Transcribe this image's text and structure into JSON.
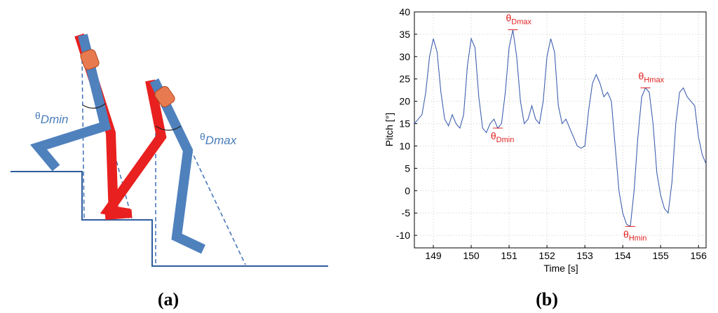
{
  "diagram": {
    "labels": [
      {
        "symbol": "θ",
        "sub": "Dmin"
      },
      {
        "symbol": "θ",
        "sub": "Dmax"
      }
    ],
    "caption": "(a)"
  },
  "chart_data": {
    "type": "line",
    "caption": "(b)",
    "x_label": "Time [s]",
    "y_label": "Pitch [°]",
    "color": "#4060b0",
    "grid": true,
    "xlim": [
      148.5,
      156.2
    ],
    "xticks": [
      149,
      150,
      151,
      152,
      153,
      154,
      155,
      156
    ],
    "ylim": [
      -12.8,
      40
    ],
    "yticks": [
      -10,
      -5,
      0,
      5,
      10,
      15,
      20,
      25,
      30,
      35,
      40
    ],
    "x": [
      148.5,
      148.6,
      148.7,
      148.8,
      148.9,
      149.0,
      149.1,
      149.2,
      149.3,
      149.4,
      149.5,
      149.6,
      149.7,
      149.8,
      149.9,
      150.0,
      150.1,
      150.2,
      150.3,
      150.4,
      150.5,
      150.6,
      150.7,
      150.8,
      150.9,
      151.0,
      151.1,
      151.2,
      151.3,
      151.4,
      151.5,
      151.6,
      151.7,
      151.8,
      151.9,
      152.0,
      152.1,
      152.2,
      152.3,
      152.4,
      152.5,
      152.6,
      152.7,
      152.8,
      152.9,
      153.0,
      153.1,
      153.2,
      153.3,
      153.4,
      153.5,
      153.6,
      153.7,
      153.8,
      153.9,
      154.0,
      154.1,
      154.2,
      154.3,
      154.4,
      154.5,
      154.6,
      154.7,
      154.8,
      154.9,
      155.0,
      155.1,
      155.2,
      155.3,
      155.4,
      155.5,
      155.6,
      155.7,
      155.8,
      155.9,
      156.0,
      156.1,
      156.2
    ],
    "values": [
      15,
      16,
      17,
      22,
      30,
      34,
      31,
      22,
      16,
      14.5,
      17,
      15,
      14,
      17,
      28,
      34,
      32,
      21,
      14,
      13,
      15,
      16,
      14,
      15,
      22,
      32,
      36,
      30,
      20,
      15,
      16,
      19,
      16,
      15,
      20,
      30,
      34,
      31,
      19,
      15,
      16,
      14,
      12,
      10,
      9.5,
      10,
      18,
      24,
      26,
      24,
      21,
      22,
      20,
      10,
      0,
      -5,
      -7.5,
      -8,
      0,
      12,
      21,
      23,
      22,
      15,
      4,
      -1,
      -4,
      -5,
      2,
      15,
      22,
      23,
      21,
      20,
      19,
      12,
      8,
      6
    ],
    "annotations": [
      {
        "symbol": "θ",
        "sub": "Dmax",
        "x": 151.1,
        "y": 36,
        "side": "above"
      },
      {
        "symbol": "θ",
        "sub": "Dmin",
        "x": 150.7,
        "y": 14,
        "side": "below"
      },
      {
        "symbol": "θ",
        "sub": "Hmax",
        "x": 154.6,
        "y": 23,
        "side": "above"
      },
      {
        "symbol": "θ",
        "sub": "Hmin",
        "x": 154.2,
        "y": -8,
        "side": "below"
      }
    ],
    "annotation_color": "#e02020"
  }
}
